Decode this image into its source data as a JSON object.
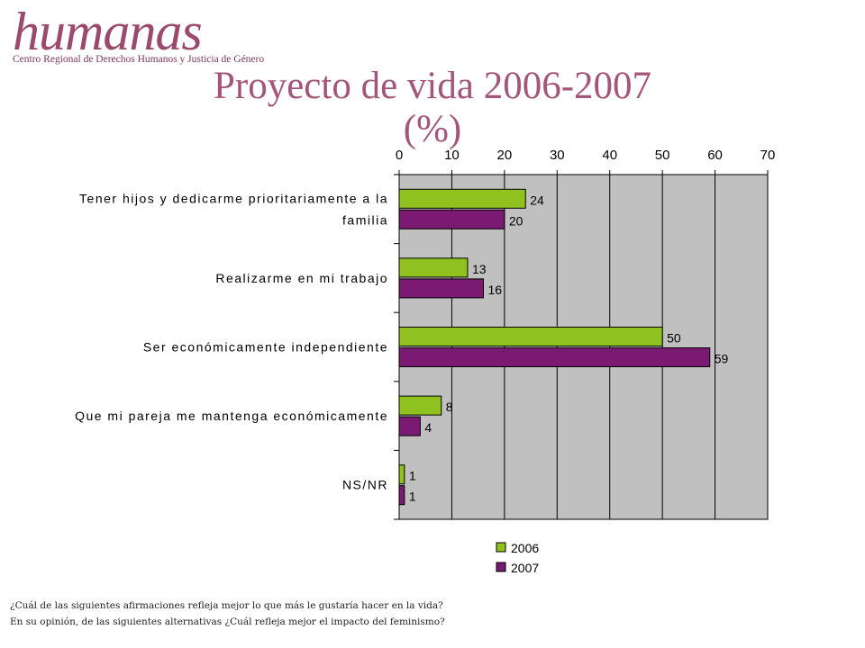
{
  "logo": {
    "word": "humanas",
    "subtitle": "Centro Regional de Derechos Humanos y Justicia de Género"
  },
  "title_line1": "Proyecto de vida 2006-2007",
  "title_line2": "(%)",
  "chart_data": {
    "type": "bar",
    "orientation": "horizontal",
    "categories": [
      [
        "Tener hijos y dedicarme prioritariamente a la",
        "familia"
      ],
      [
        "Realizarme en mi trabajo"
      ],
      [
        "Ser económicamente independiente"
      ],
      [
        "Que mi pareja me mantenga económicamente"
      ],
      [
        "NS/NR"
      ]
    ],
    "series": [
      {
        "name": "2006",
        "values": [
          24,
          13,
          50,
          8,
          1
        ],
        "color": "#8fc21e"
      },
      {
        "name": "2007",
        "values": [
          20,
          16,
          59,
          4,
          1
        ],
        "color": "#7a1a72"
      }
    ],
    "xlim": [
      0,
      70
    ],
    "xticks": [
      0,
      10,
      20,
      30,
      40,
      50,
      60,
      70
    ],
    "grid": true,
    "legend_position": "bottom",
    "plot_background": "#c0c0c0"
  },
  "footnotes": [
    "¿Cuál de las siguientes afirmaciones refleja mejor lo que más le gustaría hacer en la vida?",
    "En su opinión, de las siguientes alternativas ¿Cuál refleja mejor el impacto del feminismo?"
  ]
}
